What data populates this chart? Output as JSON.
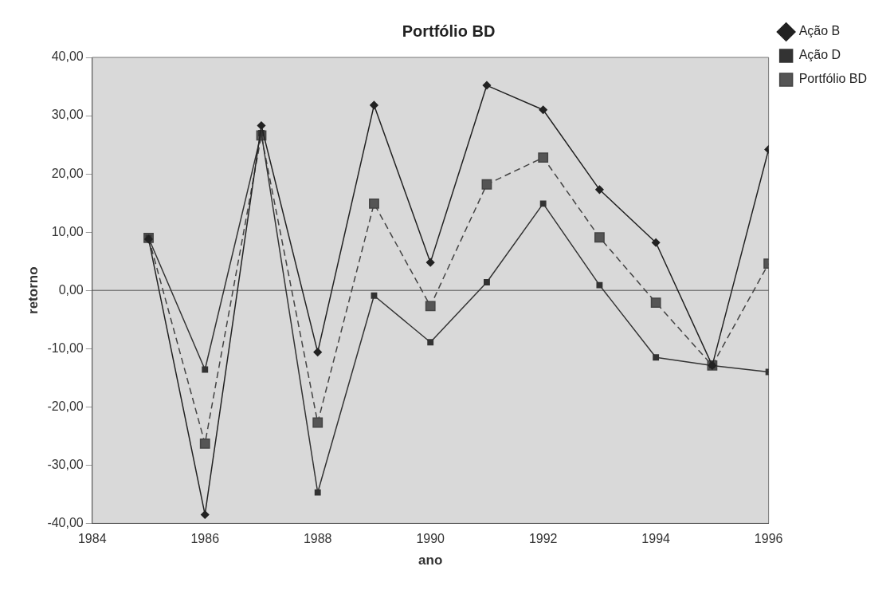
{
  "chart_data": {
    "type": "line",
    "title": "Portfólio BD",
    "xlabel": "ano",
    "ylabel": "retorno",
    "x": [
      1985,
      1986,
      1987,
      1988,
      1989,
      1990,
      1991,
      1992,
      1993,
      1994,
      1995,
      1996
    ],
    "series": [
      {
        "name": "Ação B",
        "color": "#222222",
        "marker": "diamond",
        "line_style": "solid",
        "values": [
          8.8,
          -38.5,
          28.3,
          -10.6,
          31.8,
          4.8,
          35.2,
          31.0,
          17.3,
          8.2,
          -12.9,
          24.2
        ]
      },
      {
        "name": "Ação D",
        "color": "#333333",
        "marker": "square",
        "line_style": "solid",
        "values": [
          9.0,
          -13.6,
          27.0,
          -34.7,
          -0.9,
          -8.9,
          1.4,
          14.9,
          0.9,
          -11.5,
          -12.9,
          -14.0
        ]
      },
      {
        "name": "Portfólio BD",
        "color": "#444444",
        "marker": "square",
        "line_style": "dashed",
        "values": [
          9.0,
          -26.3,
          26.6,
          -22.7,
          14.9,
          -2.7,
          18.2,
          22.8,
          9.1,
          -2.1,
          -12.9,
          4.6
        ]
      }
    ],
    "xlim": [
      1984,
      1996
    ],
    "xticks": [
      1984,
      1986,
      1988,
      1990,
      1992,
      1994,
      1996
    ],
    "ylim": [
      -40,
      40
    ],
    "yticks": [
      {
        "value": -40,
        "label": "-40,00"
      },
      {
        "value": -30,
        "label": "-30,00"
      },
      {
        "value": -20,
        "label": "-20,00"
      },
      {
        "value": -10,
        "label": "-10,00"
      },
      {
        "value": 0,
        "label": "0,00"
      },
      {
        "value": 10,
        "label": "10,00"
      },
      {
        "value": 20,
        "label": "20,00"
      },
      {
        "value": 30,
        "label": "30,00"
      },
      {
        "value": 40,
        "label": "40,00"
      }
    ],
    "ref_lines": [
      {
        "axis": "y",
        "value": 0,
        "color": "#555555"
      }
    ],
    "grid": false,
    "legend": "top right"
  }
}
